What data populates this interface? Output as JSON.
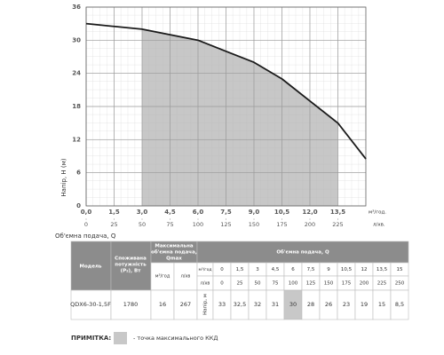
{
  "chart_data": {
    "type": "line",
    "y_label": "Напір, H (м)",
    "x_label": "Об'ємна подача, Q",
    "x_unit": "м³/год.",
    "x2_unit": "л/хв.",
    "x": [
      0,
      1.5,
      3,
      4.5,
      6,
      7.5,
      9,
      10.5,
      12,
      13.5,
      15
    ],
    "values": [
      33,
      32.5,
      32,
      31,
      30,
      28,
      26,
      23,
      19,
      15,
      8.5
    ],
    "color": "#1a1a1a",
    "shaded_range": [
      3,
      13.5
    ],
    "shade_color": "#b4b4b4",
    "xlim": [
      0,
      15
    ],
    "xticks": [
      {
        "value": 0,
        "label": "0,0"
      },
      {
        "value": 1.5,
        "label": "1,5"
      },
      {
        "value": 3,
        "label": "3,0"
      },
      {
        "value": 4.5,
        "label": "4,5"
      },
      {
        "value": 6,
        "label": "6,0"
      },
      {
        "value": 7.5,
        "label": "7,5"
      },
      {
        "value": 9,
        "label": "9,0"
      },
      {
        "value": 10.5,
        "label": "10,5"
      },
      {
        "value": 12,
        "label": "12,0"
      },
      {
        "value": 13.5,
        "label": "13,5"
      }
    ],
    "x2lim": [
      0,
      250
    ],
    "x2ticks": [
      0,
      25,
      50,
      75,
      100,
      125,
      150,
      175,
      200,
      225
    ],
    "ylim": [
      0,
      36
    ],
    "yticks": [
      0,
      6,
      12,
      18,
      24,
      30,
      36
    ],
    "grid": true
  },
  "table": {
    "headers": {
      "model": "Модель",
      "power": [
        "Споживана",
        "потужність",
        "(P₂), Вт"
      ],
      "qmax": [
        "Максимальна",
        "об'ємна подача,",
        "Qmax"
      ],
      "q": "Об'ємна подача, Q",
      "unit_m3h": "м³/год",
      "unit_lmin": "л/хв",
      "head": "Напір, м"
    },
    "q_m3h": [
      "0",
      "1,5",
      "3",
      "4,5",
      "6",
      "7,5",
      "9",
      "10,5",
      "12",
      "13,5",
      "15"
    ],
    "q_lmin": [
      "0",
      "25",
      "50",
      "75",
      "100",
      "125",
      "150",
      "175",
      "200",
      "225",
      "250"
    ],
    "row": {
      "model": "QDX6-30-1,5F",
      "power": "1780",
      "qmax_m3h": "16",
      "qmax_lmin": "267",
      "head": [
        "33",
        "32,5",
        "32",
        "31",
        "30",
        "28",
        "26",
        "23",
        "19",
        "15",
        "8,5"
      ]
    },
    "highlight": 4,
    "highlight_color": "#c8c8c8",
    "header_color": "#8c8c8c"
  },
  "note": {
    "label": "ПРИМІТКА:",
    "text": "- точка максимального ККД"
  }
}
